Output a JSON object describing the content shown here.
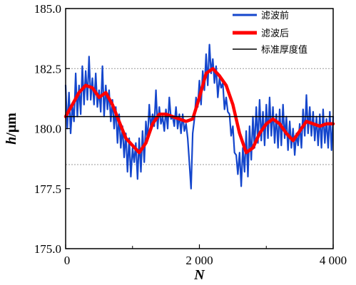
{
  "chart_data": {
    "type": "line",
    "xlabel": "N",
    "ylabel_italic": "h",
    "ylabel_unit": "/μm",
    "xlim": [
      0,
      4000
    ],
    "ylim": [
      175.0,
      185.0
    ],
    "x_ticks": [
      0,
      2000,
      4000
    ],
    "x_tick_labels": [
      "0",
      "2 000",
      "4 000"
    ],
    "x_minor_ticks": [
      1000,
      3000
    ],
    "y_ticks": [
      175.0,
      177.5,
      180.0,
      182.5,
      185.0
    ],
    "y_tick_labels": [
      "175.0",
      "177.5",
      "180.0",
      "182.5",
      "185.0"
    ],
    "reference_lines": [
      182.5,
      178.5
    ],
    "legend_position": "top-right",
    "colors": {
      "raw": "#1446cc",
      "filtered": "#ff0000",
      "standard": "#000000",
      "ref": "#9a9a9a"
    },
    "series": [
      {
        "name": "滤波前",
        "color": "#1446cc",
        "x": [
          0,
          25,
          50,
          75,
          100,
          125,
          150,
          175,
          200,
          225,
          250,
          275,
          300,
          325,
          350,
          375,
          400,
          425,
          450,
          475,
          500,
          525,
          550,
          575,
          600,
          625,
          650,
          675,
          700,
          725,
          750,
          775,
          800,
          825,
          850,
          875,
          900,
          925,
          950,
          975,
          1000,
          1025,
          1050,
          1075,
          1100,
          1125,
          1150,
          1175,
          1200,
          1225,
          1250,
          1275,
          1300,
          1325,
          1350,
          1375,
          1400,
          1425,
          1450,
          1475,
          1500,
          1525,
          1550,
          1575,
          1600,
          1625,
          1650,
          1675,
          1700,
          1725,
          1750,
          1775,
          1800,
          1825,
          1850,
          1875,
          1900,
          1925,
          1950,
          1975,
          2000,
          2025,
          2050,
          2075,
          2100,
          2125,
          2150,
          2175,
          2200,
          2225,
          2250,
          2275,
          2300,
          2325,
          2350,
          2375,
          2400,
          2425,
          2450,
          2475,
          2500,
          2525,
          2550,
          2575,
          2600,
          2625,
          2650,
          2675,
          2700,
          2725,
          2750,
          2775,
          2800,
          2825,
          2850,
          2875,
          2900,
          2925,
          2950,
          2975,
          3000,
          3025,
          3050,
          3075,
          3100,
          3125,
          3150,
          3175,
          3200,
          3225,
          3250,
          3275,
          3300,
          3325,
          3350,
          3375,
          3400,
          3425,
          3450,
          3475,
          3500,
          3525,
          3550,
          3575,
          3600,
          3625,
          3650,
          3675,
          3700,
          3725,
          3750,
          3775,
          3800,
          3825,
          3850,
          3875,
          3900,
          3925,
          3950,
          3975,
          4000
        ],
        "values": [
          181.8,
          180.0,
          181.5,
          179.8,
          181.0,
          180.3,
          182.3,
          180.5,
          181.8,
          180.6,
          182.6,
          181.0,
          182.4,
          181.2,
          183.0,
          181.2,
          182.1,
          181.0,
          182.3,
          180.9,
          181.6,
          180.7,
          182.6,
          180.5,
          181.8,
          180.8,
          181.6,
          180.3,
          181.2,
          180.0,
          180.9,
          179.4,
          180.6,
          179.2,
          180.1,
          178.8,
          179.8,
          178.2,
          179.6,
          178.0,
          179.2,
          178.6,
          179.4,
          177.9,
          179.6,
          178.2,
          179.9,
          178.6,
          180.3,
          179.5,
          181.0,
          180.0,
          180.6,
          180.1,
          181.6,
          180.0,
          180.9,
          180.2,
          180.5,
          179.9,
          180.8,
          180.0,
          181.3,
          180.4,
          180.5,
          180.1,
          180.9,
          180.0,
          180.6,
          179.8,
          180.6,
          179.9,
          180.2,
          179.6,
          178.6,
          177.5,
          179.8,
          180.4,
          181.3,
          180.9,
          182.0,
          181.0,
          182.4,
          181.6,
          183.1,
          181.8,
          183.5,
          182.3,
          182.9,
          181.9,
          182.6,
          181.3,
          182.1,
          181.7,
          181.9,
          180.8,
          181.3,
          180.7,
          180.6,
          179.7,
          180.1,
          179.0,
          178.9,
          178.1,
          179.0,
          177.6,
          179.2,
          178.2,
          179.9,
          178.0,
          180.1,
          178.7,
          180.5,
          179.2,
          180.9,
          179.4,
          181.2,
          179.5,
          180.7,
          179.3,
          181.0,
          179.6,
          181.3,
          179.7,
          180.9,
          179.4,
          180.6,
          179.2,
          180.8,
          179.3,
          181.0,
          179.6,
          180.5,
          179.1,
          180.3,
          179.2,
          180.0,
          178.9,
          179.8,
          179.3,
          180.2,
          179.2,
          180.8,
          179.7,
          181.4,
          179.8,
          180.9,
          179.7,
          180.7,
          179.5,
          180.5,
          179.3,
          180.6,
          179.2,
          180.8,
          179.4,
          180.4,
          179.2,
          180.7,
          179.1,
          180.5
        ]
      },
      {
        "name": "滤波后",
        "color": "#ff0000",
        "x": [
          0,
          100,
          200,
          300,
          400,
          500,
          600,
          700,
          800,
          900,
          1000,
          1100,
          1200,
          1300,
          1400,
          1500,
          1600,
          1700,
          1800,
          1900,
          2000,
          2100,
          2200,
          2300,
          2400,
          2500,
          2600,
          2700,
          2800,
          2900,
          3000,
          3100,
          3200,
          3300,
          3400,
          3500,
          3600,
          3700,
          3800,
          3900,
          4000
        ],
        "values": [
          180.5,
          181.0,
          181.5,
          181.8,
          181.7,
          181.3,
          181.5,
          181.0,
          180.3,
          179.6,
          179.3,
          179.0,
          179.4,
          180.2,
          180.6,
          180.6,
          180.5,
          180.4,
          180.3,
          180.4,
          181.3,
          182.3,
          182.5,
          182.2,
          181.8,
          181.0,
          179.8,
          179.0,
          179.2,
          179.8,
          180.2,
          180.4,
          180.2,
          179.8,
          179.5,
          179.9,
          180.3,
          180.2,
          180.1,
          180.2,
          180.2
        ]
      },
      {
        "name": "标准厚度值",
        "color": "#000000",
        "x": [
          0,
          4000
        ],
        "values": [
          180.5,
          180.5
        ]
      }
    ]
  }
}
